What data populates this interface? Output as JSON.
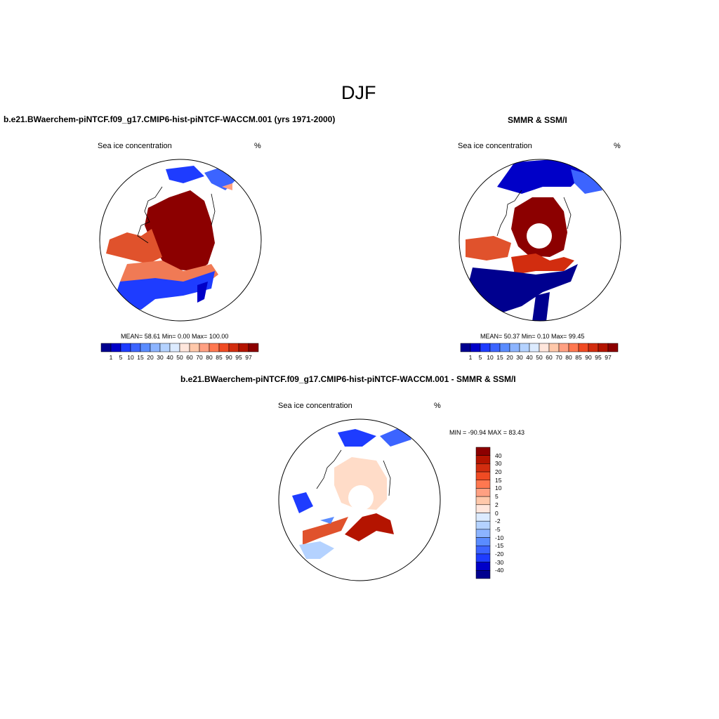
{
  "figure": {
    "title": "DJF",
    "panel_left": {
      "header": "b.e21.BWaerchem-piNTCF.f09_g17.CMIP6-hist-piNTCF-WACCM.001 (yrs 1971-2000)",
      "variable": "Sea ice concentration",
      "units": "%",
      "stats": "MEAN=  58.61  Min=   0.00  Max= 100.00"
    },
    "panel_right": {
      "header": "SMMR & SSM/I",
      "variable": "Sea ice concentration",
      "units": "%",
      "stats": "MEAN=  50.37  Min=   0.10  Max=  99.45"
    },
    "panel_diff": {
      "header": "b.e21.BWaerchem-piNTCF.f09_g17.CMIP6-hist-piNTCF-WACCM.001 - SMMR & SSM/I",
      "variable": "Sea ice concentration",
      "units": "%",
      "stats": "MIN = -90.94 MAX =  83.43"
    }
  },
  "colorbars": {
    "concentration": {
      "labels": [
        "1",
        "5",
        "10",
        "15",
        "20",
        "30",
        "40",
        "50",
        "60",
        "70",
        "80",
        "85",
        "90",
        "95",
        "97"
      ],
      "colors": [
        "#00008f",
        "#0000c8",
        "#1e3cff",
        "#3c64ff",
        "#5a8cff",
        "#8cb4ff",
        "#b4d2ff",
        "#dcebff",
        "#ffe6dc",
        "#ffc8aa",
        "#ffa082",
        "#ff7850",
        "#f04b23",
        "#d22d0f",
        "#b41400",
        "#8c0000"
      ]
    },
    "difference": {
      "labels": [
        "40",
        "30",
        "20",
        "15",
        "10",
        "5",
        "2",
        "0",
        "-2",
        "-5",
        "-10",
        "-15",
        "-20",
        "-30",
        "-40"
      ],
      "colors": [
        "#8c0000",
        "#b41400",
        "#d22d0f",
        "#f04b23",
        "#ff7850",
        "#ffa082",
        "#ffc8aa",
        "#ffe6dc",
        "#dcebff",
        "#b4d2ff",
        "#8cb4ff",
        "#5a8cff",
        "#3c64ff",
        "#1e3cff",
        "#0000c8",
        "#00008f"
      ]
    }
  }
}
